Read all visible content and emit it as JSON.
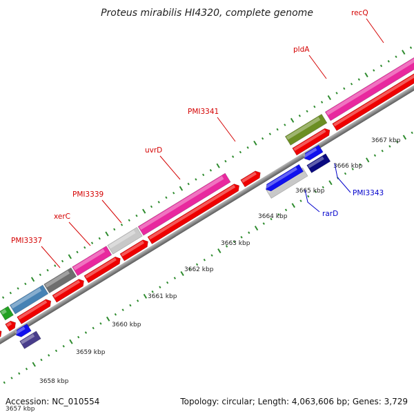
{
  "title": "Proteus mirabilis HI4320, complete genome",
  "accession": "Accession: NC_010554",
  "summary": "Topology: circular; Length: 4,063,606 bp; Genes: 3,729",
  "cutoff_tick": "3657 kbp",
  "ticks": [
    "3658 kbp",
    "3659 kbp",
    "3660 kbp",
    "3661 kbp",
    "3662 kbp",
    "3663 kbp",
    "3664 kbp",
    "3665 kbp",
    "3666 kbp",
    "3667 kbp"
  ],
  "gene_labels": {
    "forward": [
      "PMI3337",
      "xerC",
      "PMI3339",
      "uvrD",
      "PMI3341",
      "pldA",
      "recQ"
    ],
    "reverse": [
      "rarD",
      "PMI3343"
    ]
  },
  "colors": {
    "cds": "#ee0000",
    "pink": "#e8289e",
    "grey": "#c8c8c8",
    "darkgrey": "#6e6e6e",
    "steelblue": "#4682b4",
    "olive": "#6b8e23",
    "green": "#22a022",
    "blue": "#1010ee",
    "navy": "#0a0a80",
    "slate": "#483d8b",
    "cyan": "#00bfff",
    "tick_green": "#2e8b2e",
    "label_red": "#d40000",
    "label_blue": "#0000cc"
  }
}
